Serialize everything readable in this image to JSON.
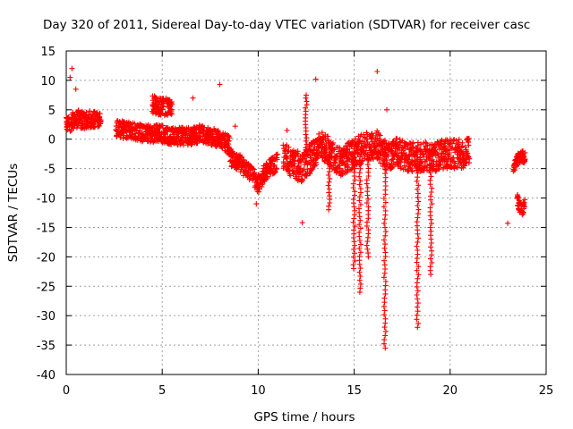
{
  "chart_data": {
    "type": "scatter",
    "title": "Day 320 of 2011, Sidereal Day-to-day VTEC variation (SDTVAR) for receiver casc",
    "xlabel": "GPS time / hours",
    "ylabel": "SDTVAR / TECUs",
    "xlim": [
      0,
      25
    ],
    "ylim": [
      -40,
      15
    ],
    "x_ticks": [
      0,
      5,
      10,
      15,
      20,
      25
    ],
    "y_ticks": [
      15,
      10,
      5,
      0,
      -5,
      -10,
      -15,
      -20,
      -25,
      -30,
      -35,
      -40
    ],
    "grid": true,
    "marker": "+",
    "color": "#ff0000",
    "series": [
      {
        "name": "SDTVAR",
        "segments": [
          {
            "x": [
              0.0,
              0.3,
              0.6,
              1.0,
              1.4,
              1.8
            ],
            "y": [
              2.5,
              3.0,
              3.5,
              3.0,
              3.5,
              3.0
            ],
            "spread": 1.5
          },
          {
            "x": [
              2.6,
              3.0,
              3.5,
              4.0,
              4.5,
              5.0,
              5.5,
              6.0,
              6.5,
              7.0,
              7.5,
              8.0,
              8.5
            ],
            "y": [
              2.0,
              1.5,
              1.5,
              1.0,
              1.0,
              1.0,
              0.5,
              0.5,
              0.5,
              1.0,
              0.5,
              0.0,
              -1.0
            ],
            "spread": 1.5
          },
          {
            "x": [
              4.5,
              4.8,
              5.2,
              5.5
            ],
            "y": [
              6.0,
              5.5,
              5.5,
              5.0
            ],
            "spread": 1.5
          },
          {
            "x": [
              8.5,
              9.0,
              9.3,
              9.6,
              10.0,
              10.5,
              11.0
            ],
            "y": [
              -3.0,
              -4.0,
              -5.0,
              -6.0,
              -7.5,
              -5.0,
              -4.0
            ],
            "spread": 1.5
          },
          {
            "x": [
              11.3,
              11.8,
              12.3,
              12.8,
              13.2,
              13.7,
              14.2,
              14.7,
              15.2,
              15.7,
              16.2,
              16.7,
              17.2,
              17.7,
              18.2,
              18.7,
              19.2,
              19.7,
              20.2,
              20.6,
              21.0
            ],
            "y": [
              -3.0,
              -4.0,
              -5.0,
              -3.0,
              -1.0,
              -2.0,
              -4.0,
              -3.0,
              -2.0,
              -1.0,
              -1.0,
              -3.0,
              -2.0,
              -3.0,
              -3.0,
              -3.0,
              -3.0,
              -2.5,
              -2.5,
              -2.5,
              -2.0
            ],
            "spread": 2.5
          },
          {
            "x": [
              23.3,
              23.5,
              23.7,
              23.9
            ],
            "y": [
              -5.0,
              -3.5,
              -3.0,
              -3.0
            ],
            "spread": 1.0
          },
          {
            "x": [
              23.5,
              23.6,
              23.8,
              23.9
            ],
            "y": [
              -10.0,
              -11.5,
              -12.0,
              -11.0
            ],
            "spread": 1.0
          }
        ],
        "dips": [
          {
            "x": 13.7,
            "y_top": -2.0,
            "y_min": -12.0
          },
          {
            "x": 15.0,
            "y_top": -3.0,
            "y_min": -22.0
          },
          {
            "x": 15.3,
            "y_top": -3.0,
            "y_min": -26.0
          },
          {
            "x": 15.7,
            "y_top": -3.0,
            "y_min": -20.0
          },
          {
            "x": 16.6,
            "y_top": -3.0,
            "y_min": -35.5
          },
          {
            "x": 18.3,
            "y_top": -3.0,
            "y_min": -32.0
          },
          {
            "x": 19.0,
            "y_top": -3.0,
            "y_min": -23.0
          },
          {
            "x": 12.5,
            "y_top": 7.0,
            "y_min": -2.0
          }
        ],
        "outliers": [
          {
            "x": 0.3,
            "y": 12.0
          },
          {
            "x": 0.2,
            "y": 10.5
          },
          {
            "x": 0.5,
            "y": 8.5
          },
          {
            "x": 6.6,
            "y": 7.0
          },
          {
            "x": 8.0,
            "y": 9.3
          },
          {
            "x": 12.5,
            "y": 7.5
          },
          {
            "x": 13.0,
            "y": 10.2
          },
          {
            "x": 16.2,
            "y": 11.5
          },
          {
            "x": 16.7,
            "y": 5.0
          },
          {
            "x": 9.9,
            "y": -11.0
          },
          {
            "x": 12.3,
            "y": -14.2
          },
          {
            "x": 23.0,
            "y": -14.3
          },
          {
            "x": 8.8,
            "y": 2.2
          },
          {
            "x": 11.5,
            "y": 1.5
          }
        ]
      }
    ]
  }
}
